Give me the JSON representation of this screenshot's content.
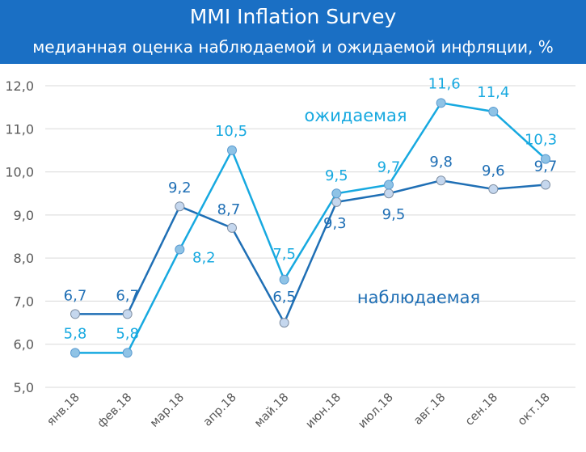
{
  "header": {
    "title": "MMI Inflation Survey",
    "subtitle": "медианная оценка наблюдаемой и ожидаемой инфляции, %"
  },
  "chart_data": {
    "type": "line",
    "title": "MMI Inflation Survey",
    "subtitle": "медианная оценка наблюдаемой и ожидаемой инфляции, %",
    "xlabel": "",
    "ylabel": "",
    "categories": [
      "янв.18",
      "фев.18",
      "мар.18",
      "апр.18",
      "май.18",
      "июн.18",
      "июл.18",
      "авг.18",
      "сен.18",
      "окт.18"
    ],
    "ylim": [
      5.0,
      12.0
    ],
    "yticks": [
      "5,0",
      "6,0",
      "7,0",
      "8,0",
      "9,0",
      "10,0",
      "11,0",
      "12,0"
    ],
    "grid": true,
    "series": [
      {
        "name": "наблюдаемая",
        "color": "#1f6fb5",
        "marker_fill": "#c5d7ee",
        "values": [
          6.7,
          6.7,
          9.2,
          8.7,
          6.5,
          9.3,
          9.5,
          9.8,
          9.6,
          9.7
        ],
        "labels": [
          "6,7",
          "6,7",
          "9,2",
          "8,7",
          "6,5",
          "9,3",
          "9,5",
          "9,8",
          "9,6",
          "9,7"
        ]
      },
      {
        "name": "ожидаемая",
        "color": "#17a9e0",
        "marker_fill": "#8fc3e6",
        "values": [
          5.8,
          5.8,
          8.2,
          10.5,
          7.5,
          9.5,
          9.7,
          11.6,
          11.4,
          10.3
        ],
        "labels": [
          "5,8",
          "5,8",
          "8,2",
          "10,5",
          "7,5",
          "9,5",
          "9,7",
          "11,6",
          "11,4",
          "10,3"
        ]
      }
    ]
  }
}
